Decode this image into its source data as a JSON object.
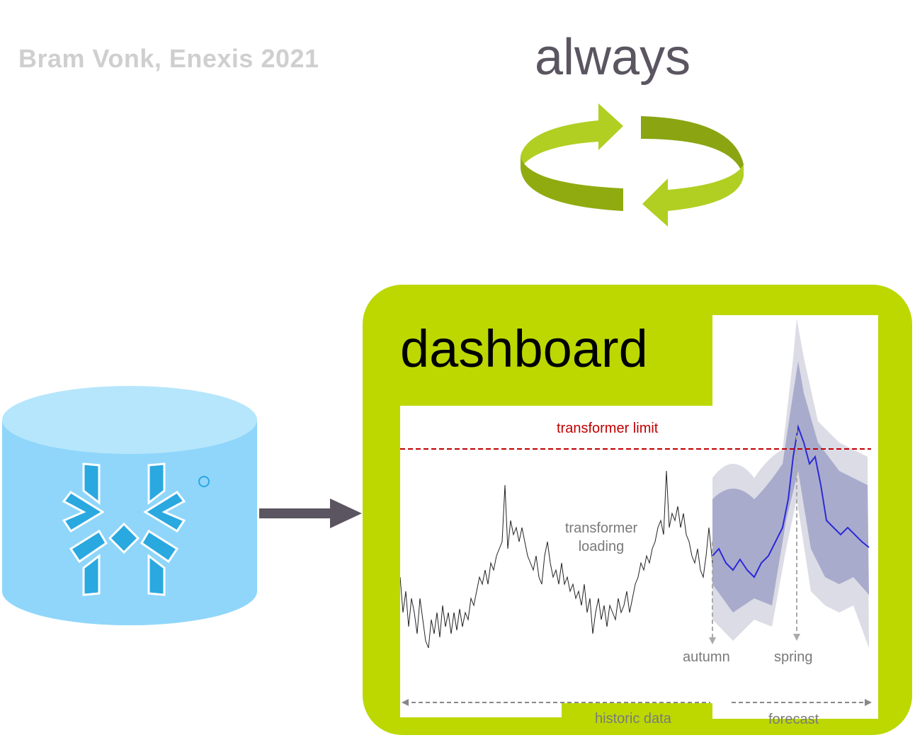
{
  "author": "Bram Vonk, Enexis 2021",
  "cycle_label": "always",
  "dashboard_title": "dashboard",
  "database_icon": "snowflake-database-icon",
  "colors": {
    "accent_green": "#bcd800",
    "cycle_green": "#a4c11a",
    "db_blue": "#8fd6fa",
    "limit_red": "#c00000",
    "forecast_line": "#2a2ad8",
    "forecast_band": "#9ea0c8"
  },
  "chart": {
    "limit_label": "transformer limit",
    "loading_label": "transformer loading",
    "autumn_label": "autumn",
    "spring_label": "spring",
    "historic_label": "historic data",
    "forecast_label": "forecast"
  }
}
